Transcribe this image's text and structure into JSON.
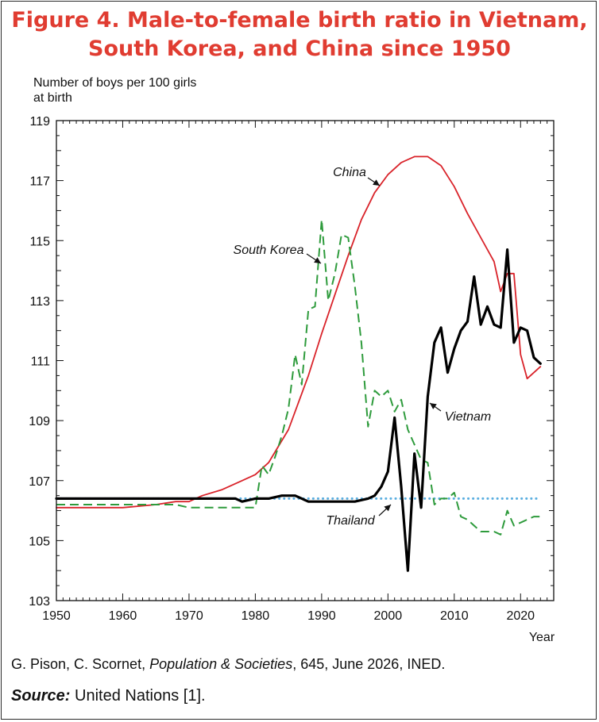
{
  "chart_data": {
    "type": "line",
    "title_line1": "Figure 4. Male-to-female birth ratio in Vietnam,",
    "title_line2": "South Korea, and China since 1950",
    "ylabel_line1": "Number of boys per 100 girls",
    "ylabel_line2": "at birth",
    "xlabel": "Year",
    "xlim": [
      1950,
      2025
    ],
    "ylim": [
      103,
      119
    ],
    "xticks": [
      1950,
      1960,
      1970,
      1980,
      1990,
      2000,
      2010,
      2020
    ],
    "yticks": [
      103,
      105,
      107,
      109,
      111,
      113,
      115,
      117,
      119
    ],
    "colors": {
      "China": "#d9232a",
      "South Korea": "#2e9b3c",
      "Vietnam": "#000000",
      "Thailand": "#5aaee0"
    },
    "series": [
      {
        "name": "China",
        "x": [
          1950,
          1955,
          1960,
          1965,
          1968,
          1970,
          1972,
          1975,
          1978,
          1980,
          1982,
          1985,
          1988,
          1990,
          1992,
          1994,
          1996,
          1998,
          2000,
          2002,
          2004,
          2006,
          2008,
          2010,
          2012,
          2014,
          2016,
          2017,
          2018,
          2019,
          2020,
          2021,
          2023
        ],
        "y": [
          106.1,
          106.1,
          106.1,
          106.2,
          106.3,
          106.3,
          106.5,
          106.7,
          107.0,
          107.2,
          107.6,
          108.7,
          110.5,
          111.9,
          113.2,
          114.5,
          115.7,
          116.6,
          117.2,
          117.6,
          117.8,
          117.8,
          117.5,
          116.8,
          115.9,
          115.1,
          114.3,
          113.3,
          113.9,
          113.9,
          111.2,
          110.4,
          110.8
        ]
      },
      {
        "name": "South Korea",
        "x": [
          1950,
          1955,
          1960,
          1965,
          1968,
          1970,
          1975,
          1980,
          1981,
          1982,
          1983,
          1984,
          1985,
          1986,
          1987,
          1988,
          1989,
          1990,
          1991,
          1992,
          1993,
          1994,
          1995,
          1996,
          1997,
          1998,
          1999,
          2000,
          2001,
          2002,
          2003,
          2004,
          2005,
          2006,
          2007,
          2008,
          2009,
          2010,
          2011,
          2012,
          2013,
          2014,
          2015,
          2016,
          2017,
          2018,
          2019,
          2020,
          2021,
          2022,
          2023
        ],
        "y": [
          106.2,
          106.2,
          106.2,
          106.2,
          106.2,
          106.1,
          106.1,
          106.1,
          107.5,
          107.2,
          107.8,
          108.5,
          109.4,
          111.2,
          110.2,
          112.7,
          112.8,
          115.7,
          113.0,
          113.9,
          115.2,
          115.1,
          113.5,
          111.6,
          108.8,
          110.0,
          109.8,
          110.0,
          109.3,
          109.7,
          108.7,
          108.2,
          107.7,
          107.6,
          106.2,
          106.4,
          106.4,
          106.6,
          105.8,
          105.7,
          105.5,
          105.3,
          105.3,
          105.3,
          105.2,
          106.0,
          105.5,
          105.6,
          105.7,
          105.8,
          105.8
        ]
      },
      {
        "name": "Vietnam",
        "x": [
          1950,
          1955,
          1960,
          1965,
          1970,
          1975,
          1977,
          1978,
          1980,
          1982,
          1984,
          1986,
          1988,
          1990,
          1992,
          1995,
          1997,
          1998,
          1999,
          2000,
          2001,
          2002,
          2003,
          2004,
          2005,
          2006,
          2007,
          2008,
          2009,
          2010,
          2011,
          2012,
          2013,
          2014,
          2015,
          2016,
          2017,
          2018,
          2019,
          2020,
          2021,
          2022,
          2023
        ],
        "y": [
          106.4,
          106.4,
          106.4,
          106.4,
          106.4,
          106.4,
          106.4,
          106.3,
          106.4,
          106.4,
          106.5,
          106.5,
          106.3,
          106.3,
          106.3,
          106.3,
          106.4,
          106.5,
          106.8,
          107.3,
          109.1,
          106.8,
          104.0,
          107.9,
          106.1,
          109.8,
          111.6,
          112.1,
          110.6,
          111.4,
          112.0,
          112.3,
          113.8,
          112.2,
          112.8,
          112.2,
          112.1,
          114.7,
          111.6,
          112.1,
          112.0,
          111.1,
          110.9
        ]
      },
      {
        "name": "Thailand",
        "x": [
          1950,
          2023
        ],
        "y": [
          106.4,
          106.4
        ]
      }
    ]
  },
  "credit": {
    "authors": "G. Pison, C. Scornet, ",
    "journal": "Population & Societies",
    "rest": ", 645, June 2026, INED."
  },
  "source": {
    "label": "Source:",
    "text": " United Nations [1]."
  }
}
